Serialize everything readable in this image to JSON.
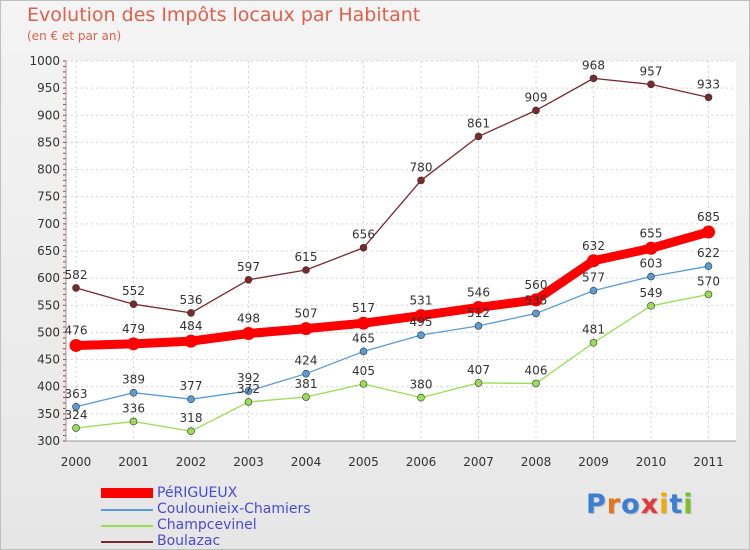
{
  "header": {
    "title": "Evolution des Impôts locaux par Habitant",
    "subtitle": "(en € et par an)"
  },
  "logo": {
    "text": "Proxiti",
    "letter_colors": [
      "#3a7fd5",
      "#e8731a",
      "#3a7fd5",
      "#e03b3b",
      "#f2a900",
      "#3a7fd5",
      "#7cbf2a"
    ]
  },
  "chart_data": {
    "type": "line",
    "x": [
      "2000",
      "2001",
      "2002",
      "2003",
      "2004",
      "2005",
      "2006",
      "2007",
      "2008",
      "2009",
      "2010",
      "2011"
    ],
    "ylim": [
      300,
      1000
    ],
    "y_ticks": [
      300,
      350,
      400,
      450,
      500,
      550,
      600,
      650,
      700,
      750,
      800,
      850,
      900,
      950,
      1000
    ],
    "grid": true,
    "legend_position": "bottom-left",
    "series": [
      {
        "name": "PéRIGUEUX",
        "color": "#ff0000",
        "values": [
          476,
          479,
          484,
          498,
          507,
          517,
          531,
          546,
          560,
          632,
          655,
          685
        ]
      },
      {
        "name": "Coulounieix-Chamiers",
        "color": "#5b9bd5",
        "values": [
          363,
          389,
          377,
          392,
          424,
          465,
          495,
          512,
          535,
          577,
          603,
          622
        ]
      },
      {
        "name": "Champcevinel",
        "color": "#99dd55",
        "values": [
          324,
          336,
          318,
          372,
          381,
          405,
          380,
          407,
          406,
          481,
          549,
          570
        ]
      },
      {
        "name": "Boulazac",
        "color": "#7a2a2a",
        "values": [
          582,
          552,
          536,
          597,
          615,
          656,
          780,
          861,
          909,
          968,
          957,
          933
        ]
      }
    ]
  }
}
